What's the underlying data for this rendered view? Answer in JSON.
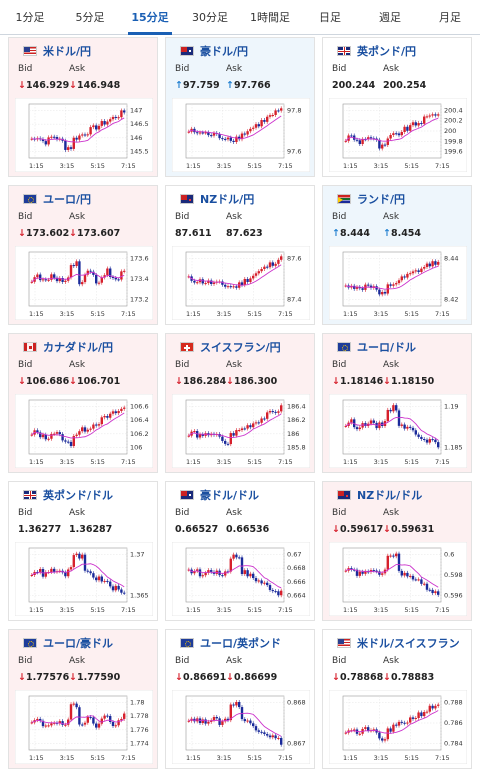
{
  "tabs": [
    {
      "label": "1分足",
      "active": false
    },
    {
      "label": "5分足",
      "active": false
    },
    {
      "label": "15分足",
      "active": true
    },
    {
      "label": "30分足",
      "active": false
    },
    {
      "label": "1時間足",
      "active": false
    },
    {
      "label": "日足",
      "active": false
    },
    {
      "label": "週足",
      "active": false
    },
    {
      "label": "月足",
      "active": false
    }
  ],
  "labels": {
    "bid": "Bid",
    "ask": "Ask"
  },
  "time_labels": [
    "1:15",
    "3:15",
    "5:15",
    "7:15"
  ],
  "colors": {
    "down_arrow": "#d6202c",
    "up_arrow": "#1f7ed0",
    "candle_up": "#d6202c",
    "candle_down": "#1a2a9a",
    "ma": "#cc33cc",
    "pair_text": "#1a4fa0"
  },
  "cards": [
    {
      "pair": "米ドル/円",
      "flag": "us",
      "tone": "down",
      "bid_dir": "down",
      "ask_dir": "down",
      "bid": "146.929",
      "ask": "146.948",
      "y_ticks": [
        "147",
        "146.5",
        "146",
        "145.5"
      ],
      "pattern": "rise_late"
    },
    {
      "pair": "豪ドル/円",
      "flag": "au",
      "tone": "up",
      "bid_dir": "up",
      "ask_dir": "up",
      "bid": "97.759",
      "ask": "97.766",
      "y_ticks": [
        "97.8",
        "97.6"
      ],
      "pattern": "dip_rise"
    },
    {
      "pair": "英ポンド/円",
      "flag": "gb",
      "tone": "flat",
      "bid_dir": "none",
      "ask_dir": "none",
      "bid": "200.244",
      "ask": "200.254",
      "y_ticks": [
        "200.4",
        "200.2",
        "200",
        "199.8",
        "199.6"
      ],
      "pattern": "rise_late"
    },
    {
      "pair": "ユーロ/円",
      "flag": "eu",
      "tone": "down",
      "bid_dir": "down",
      "ask_dir": "down",
      "bid": "173.602",
      "ask": "173.607",
      "y_ticks": [
        "173.6",
        "173.4",
        "173.2"
      ],
      "pattern": "spike_mid"
    },
    {
      "pair": "NZドル/円",
      "flag": "nz",
      "tone": "flat",
      "bid_dir": "none",
      "ask_dir": "none",
      "bid": "87.611",
      "ask": "87.623",
      "y_ticks": [
        "87.6",
        "87.4"
      ],
      "pattern": "dip_rise"
    },
    {
      "pair": "ランド/円",
      "flag": "za",
      "tone": "up",
      "bid_dir": "up",
      "ask_dir": "up",
      "bid": "8.444",
      "ask": "8.454",
      "y_ticks": [
        "8.44",
        "8.42"
      ],
      "pattern": "rise_late"
    },
    {
      "pair": "カナダドル/円",
      "flag": "ca",
      "tone": "down",
      "bid_dir": "down",
      "ask_dir": "down",
      "bid": "106.686",
      "ask": "106.701",
      "y_ticks": [
        "106.6",
        "106.4",
        "106.2",
        "106"
      ],
      "pattern": "rise_late"
    },
    {
      "pair": "スイスフラン/円",
      "flag": "ch",
      "tone": "down",
      "bid_dir": "down",
      "ask_dir": "down",
      "bid": "186.284",
      "ask": "186.300",
      "y_ticks": [
        "186.4",
        "186.2",
        "186",
        "185.8"
      ],
      "pattern": "rise_late"
    },
    {
      "pair": "ユーロ/ドル",
      "flag": "eu",
      "tone": "down",
      "bid_dir": "down",
      "ask_dir": "down",
      "bid": "1.18146",
      "ask": "1.18150",
      "y_ticks": [
        "1.19",
        "1.185"
      ],
      "pattern": "fall_late"
    },
    {
      "pair": "英ポンド/ドル",
      "flag": "gb",
      "tone": "flat",
      "bid_dir": "none",
      "ask_dir": "none",
      "bid": "1.36277",
      "ask": "1.36287",
      "y_ticks": [
        "1.37",
        "1.365"
      ],
      "pattern": "fall_late"
    },
    {
      "pair": "豪ドル/ドル",
      "flag": "au",
      "tone": "flat",
      "bid_dir": "none",
      "ask_dir": "none",
      "bid": "0.66527",
      "ask": "0.66536",
      "y_ticks": [
        "0.67",
        "0.668",
        "0.666",
        "0.664"
      ],
      "pattern": "fall_late"
    },
    {
      "pair": "NZドル/ドル",
      "flag": "nz",
      "tone": "down",
      "bid_dir": "down",
      "ask_dir": "down",
      "bid": "0.59617",
      "ask": "0.59631",
      "y_ticks": [
        "0.6",
        "0.598",
        "0.596"
      ],
      "pattern": "fall_late"
    },
    {
      "pair": "ユーロ/豪ドル",
      "flag": "eu",
      "tone": "down",
      "bid_dir": "down",
      "ask_dir": "down",
      "bid": "1.77576",
      "ask": "1.77590",
      "y_ticks": [
        "1.78",
        "1.778",
        "1.776",
        "1.774"
      ],
      "pattern": "spike_mid"
    },
    {
      "pair": "ユーロ/英ポンド",
      "flag": "eu",
      "tone": "flat",
      "bid_dir": "down",
      "ask_dir": "down",
      "bid": "0.86691",
      "ask": "0.86699",
      "y_ticks": [
        "0.868",
        "0.867"
      ],
      "pattern": "fall_late"
    },
    {
      "pair": "米ドル/スイスフラン",
      "flag": "us",
      "tone": "flat",
      "bid_dir": "down",
      "ask_dir": "down",
      "bid": "0.78868",
      "ask": "0.78883",
      "y_ticks": [
        "0.788",
        "0.786",
        "0.784"
      ],
      "pattern": "rise_late"
    }
  ]
}
